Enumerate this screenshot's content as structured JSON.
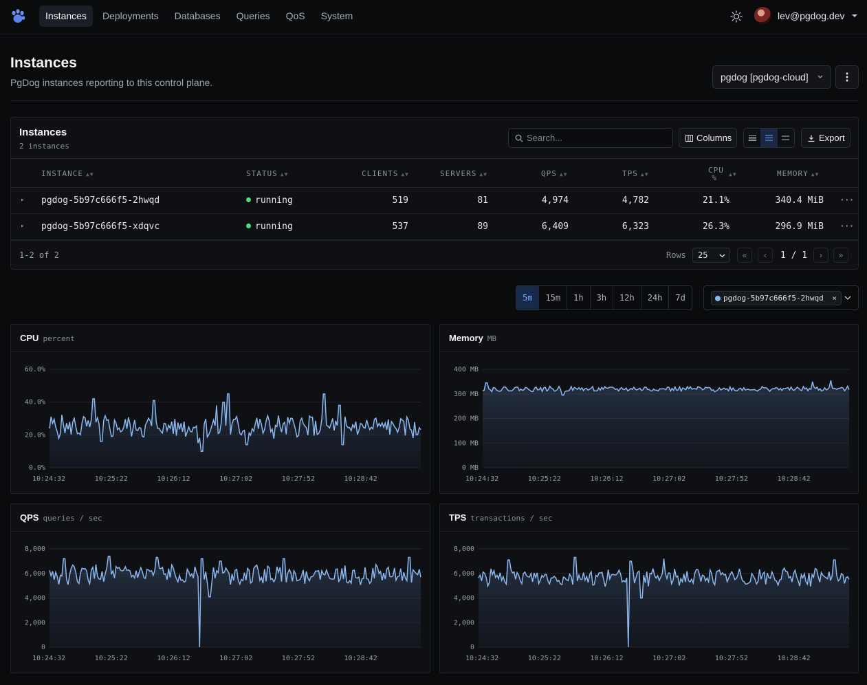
{
  "nav": {
    "items": [
      "Instances",
      "Deployments",
      "Databases",
      "Queries",
      "QoS",
      "System"
    ],
    "active": "Instances"
  },
  "user": {
    "email": "lev@pgdog.dev"
  },
  "header": {
    "title": "Instances",
    "subtitle": "PgDog instances reporting to this control plane.",
    "cluster": "pgdog [pgdog-cloud]"
  },
  "card": {
    "title": "Instances",
    "count": "2 instances",
    "search_placeholder": "Search...",
    "columns_label": "Columns",
    "export_label": "Export"
  },
  "table": {
    "headers": [
      "INSTANCE",
      "STATUS",
      "CLIENTS",
      "SERVERS",
      "QPS",
      "TPS",
      "CPU %",
      "MEMORY"
    ],
    "rows": [
      {
        "instance": "pgdog-5b97c666f5-2hwqd",
        "status": "running",
        "clients": "519",
        "servers": "81",
        "qps": "4,974",
        "tps": "4,782",
        "cpu": "21.1%",
        "memory": "340.4 MiB"
      },
      {
        "instance": "pgdog-5b97c666f5-xdqvc",
        "status": "running",
        "clients": "537",
        "servers": "89",
        "qps": "6,409",
        "tps": "6,323",
        "cpu": "26.3%",
        "memory": "296.9 MiB"
      }
    ],
    "range_label": "1-2 of 2",
    "rows_label": "Rows",
    "rows_per_page": "25",
    "page": "1 / 1"
  },
  "time_ranges": [
    "5m",
    "15m",
    "1h",
    "3h",
    "12h",
    "24h",
    "7d"
  ],
  "time_range_selected": "5m",
  "instance_filter": "pgdog-5b97c666f5-2hwqd",
  "colors": {
    "accent": "#6ea8ff",
    "line": "#8bb8f0",
    "status_running": "#4ade80"
  },
  "chart_data": [
    {
      "type": "line",
      "title": "CPU",
      "unit": "percent",
      "ylim": [
        0,
        60
      ],
      "yticks": [
        "60.0%",
        "40.0%",
        "20.0%",
        "0.0%"
      ],
      "x_ticks": [
        "10:24:32",
        "10:25:22",
        "10:26:12",
        "10:27:02",
        "10:27:52",
        "10:28:42"
      ],
      "baseline": 25,
      "noise": 6,
      "spikes": [
        [
          0.12,
          42
        ],
        [
          0.14,
          16
        ],
        [
          0.28,
          41
        ],
        [
          0.4,
          15
        ],
        [
          0.41,
          38
        ],
        [
          0.41,
          10
        ],
        [
          0.45,
          38
        ],
        [
          0.47,
          40
        ],
        [
          0.48,
          45
        ],
        [
          0.53,
          14
        ],
        [
          0.74,
          45
        ],
        [
          0.78,
          38
        ],
        [
          0.79,
          14
        ],
        [
          0.99,
          20
        ]
      ]
    },
    {
      "type": "area",
      "title": "Memory",
      "unit": "MB",
      "ylim": [
        0,
        400
      ],
      "yticks": [
        "400 MB",
        "300 MB",
        "200 MB",
        "100 MB",
        "0 MB"
      ],
      "x_ticks": [
        "10:24:32",
        "10:25:22",
        "10:26:12",
        "10:27:02",
        "10:27:52",
        "10:28:42"
      ],
      "baseline": 320,
      "noise": 9,
      "spikes": [
        [
          0.01,
          345
        ],
        [
          0.22,
          295
        ],
        [
          0.9,
          350
        ],
        [
          0.95,
          355
        ]
      ]
    },
    {
      "type": "area",
      "title": "QPS",
      "unit": "queries / sec",
      "ylim": [
        0,
        8000
      ],
      "yticks": [
        "8,000",
        "6,000",
        "4,000",
        "2,000",
        "0"
      ],
      "x_ticks": [
        "10:24:32",
        "10:25:22",
        "10:26:12",
        "10:27:02",
        "10:27:52",
        "10:28:42"
      ],
      "baseline": 5900,
      "noise": 650,
      "spikes": [
        [
          0.04,
          7200
        ],
        [
          0.16,
          7400
        ],
        [
          0.29,
          7300
        ],
        [
          0.405,
          0
        ],
        [
          0.41,
          7200
        ],
        [
          0.43,
          4100
        ],
        [
          0.46,
          7000
        ],
        [
          0.63,
          7200
        ],
        [
          0.97,
          7300
        ]
      ]
    },
    {
      "type": "area",
      "title": "TPS",
      "unit": "transactions / sec",
      "ylim": [
        0,
        8000
      ],
      "yticks": [
        "8,000",
        "6,000",
        "4,000",
        "2,000",
        "0"
      ],
      "x_ticks": [
        "10:24:32",
        "10:25:22",
        "10:26:12",
        "10:27:02",
        "10:27:52",
        "10:28:42"
      ],
      "baseline": 5700,
      "noise": 600,
      "spikes": [
        [
          0.08,
          7100
        ],
        [
          0.26,
          7300
        ],
        [
          0.405,
          0
        ],
        [
          0.41,
          7000
        ],
        [
          0.44,
          4000
        ],
        [
          0.5,
          7200
        ],
        [
          0.96,
          7100
        ]
      ]
    }
  ]
}
